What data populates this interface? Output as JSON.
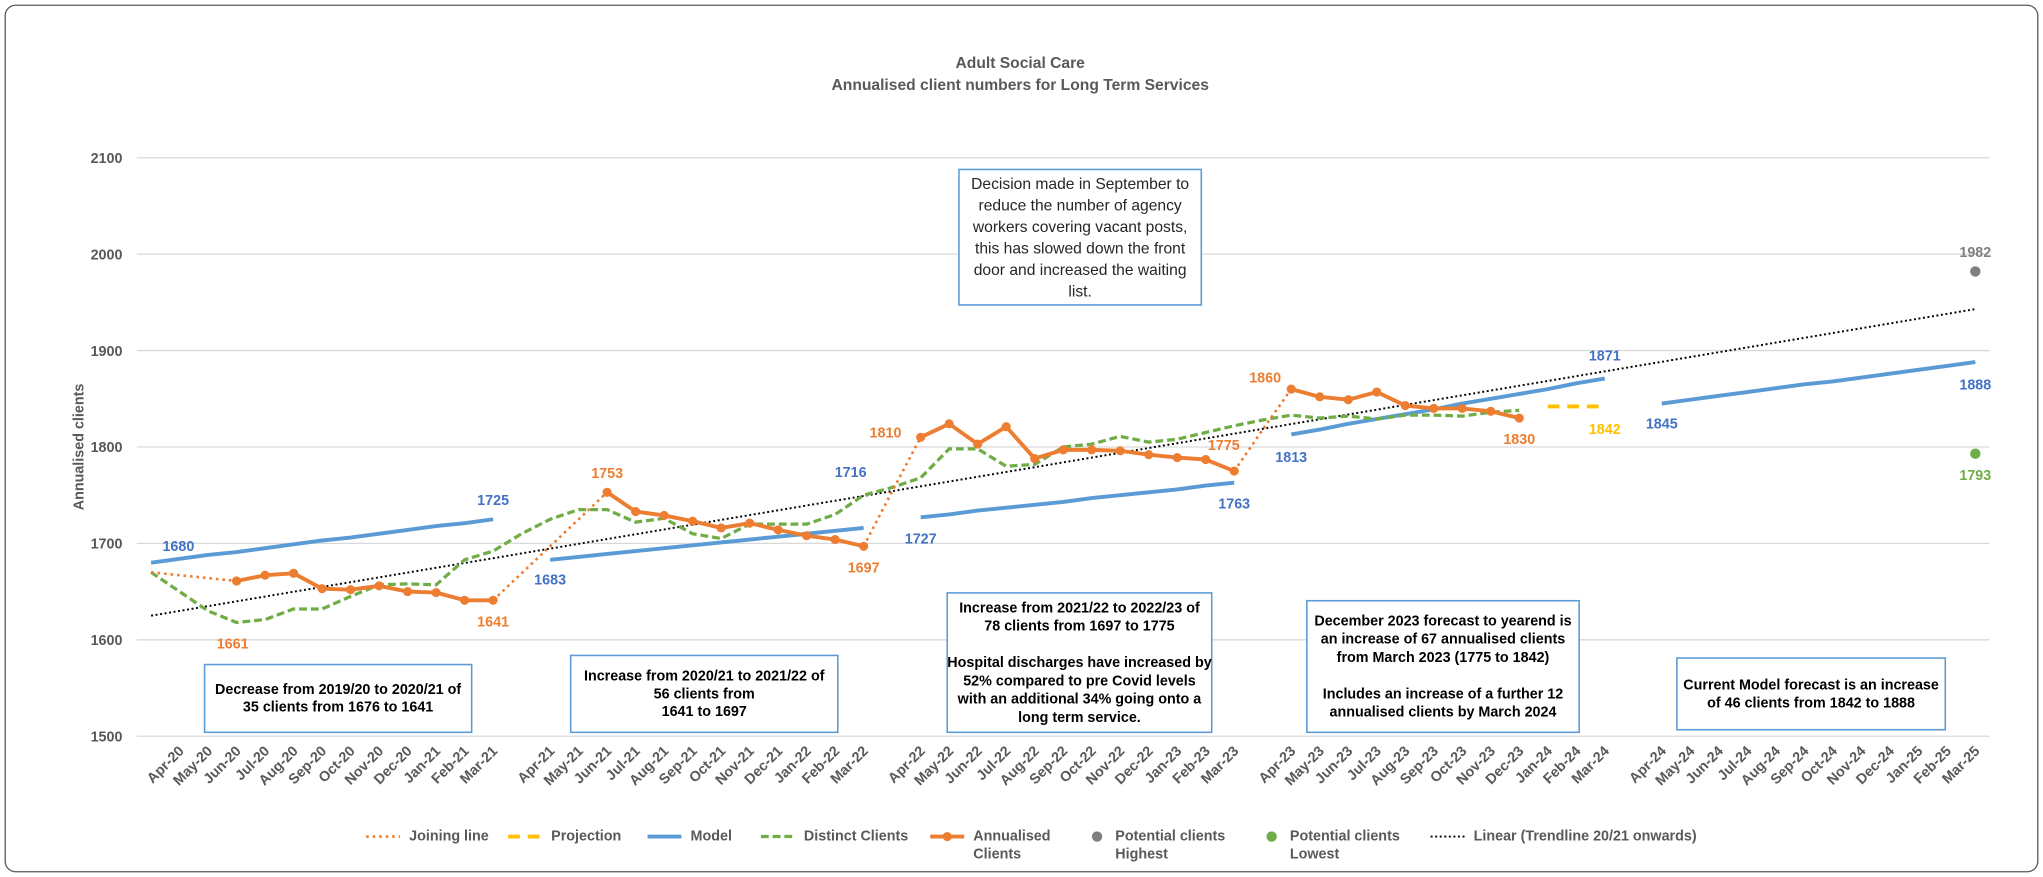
{
  "chart_data": {
    "type": "line",
    "title": "Adult Social Care",
    "subtitle": "Annualised client numbers for Long Term Services",
    "ylabel": "Annualised clients",
    "ylim": [
      1500,
      2100
    ],
    "yticks": [
      1500,
      1600,
      1700,
      1800,
      1900,
      2000,
      2100
    ],
    "grid": true,
    "categories": [
      null,
      "Apr-20",
      "May-20",
      "Jun-20",
      "Jul-20",
      "Aug-20",
      "Sep-20",
      "Oct-20",
      "Nov-20",
      "Dec-20",
      "Jan-21",
      "Feb-21",
      "Mar-21",
      null,
      "Apr-21",
      "May-21",
      "Jun-21",
      "Jul-21",
      "Aug-21",
      "Sep-21",
      "Oct-21",
      "Nov-21",
      "Dec-21",
      "Jan-22",
      "Feb-22",
      "Mar-22",
      null,
      "Apr-22",
      "May-22",
      "Jun-22",
      "Jul-22",
      "Aug-22",
      "Sep-22",
      "Oct-22",
      "Nov-22",
      "Dec-22",
      "Jan-23",
      "Feb-23",
      "Mar-23",
      null,
      "Apr-23",
      "May-23",
      "Jun-23",
      "Jul-23",
      "Aug-23",
      "Sep-23",
      "Oct-23",
      "Nov-23",
      "Dec-23",
      "Jan-24",
      "Feb-24",
      "Mar-24",
      null,
      "Apr-24",
      "May-24",
      "Jun-24",
      "Jul-24",
      "Aug-24",
      "Sep-24",
      "Oct-24",
      "Nov-24",
      "Dec-24",
      "Jan-25",
      "Feb-25",
      "Mar-25"
    ],
    "series": [
      {
        "name": "Joining line",
        "color": "#ed7d31",
        "values": [
          1670,
          1667,
          1664,
          1661,
          null,
          null,
          null,
          null,
          null,
          null,
          null,
          null,
          1641,
          1669,
          1697,
          1725,
          1753,
          null,
          null,
          null,
          null,
          null,
          null,
          null,
          null,
          1697,
          1754,
          1810,
          null,
          null,
          null,
          null,
          null,
          null,
          null,
          null,
          null,
          null,
          1775,
          1818,
          1860,
          null,
          null,
          null,
          null,
          null,
          null,
          null,
          null,
          null,
          null,
          null,
          null,
          null,
          null,
          null,
          null,
          null,
          null,
          null,
          null,
          null,
          null,
          null,
          null
        ]
      },
      {
        "name": "Projection",
        "color": "#ffc000",
        "values": [
          null,
          null,
          null,
          null,
          null,
          null,
          null,
          null,
          null,
          null,
          null,
          null,
          null,
          null,
          null,
          null,
          null,
          null,
          null,
          null,
          null,
          null,
          null,
          null,
          null,
          null,
          null,
          null,
          null,
          null,
          null,
          null,
          null,
          null,
          null,
          null,
          null,
          null,
          null,
          null,
          null,
          null,
          null,
          null,
          null,
          null,
          null,
          null,
          null,
          1842,
          1842,
          1842,
          null,
          null,
          null,
          null,
          null,
          null,
          null,
          null,
          null,
          null,
          null,
          null,
          null
        ],
        "value_labels": {
          "51": "1842"
        }
      },
      {
        "name": "Model",
        "color": "#5b9bd5",
        "label_color": "#4472c4",
        "values": [
          1680,
          1684,
          1688,
          1691,
          1695,
          1699,
          1703,
          1706,
          1710,
          1714,
          1718,
          1721,
          1725,
          null,
          1683,
          1686,
          1689,
          1692,
          1695,
          1698,
          1701,
          1704,
          1707,
          1710,
          1713,
          1716,
          null,
          1727,
          1730,
          1734,
          1737,
          1740,
          1743,
          1747,
          1750,
          1753,
          1756,
          1760,
          1763,
          null,
          1813,
          1818,
          1824,
          1829,
          1834,
          1839,
          1845,
          1850,
          1855,
          1860,
          1866,
          1871,
          null,
          1845,
          1849,
          1853,
          1857,
          1861,
          1865,
          1868,
          1872,
          1876,
          1880,
          1884,
          1888
        ],
        "value_labels": {
          "0": "1680",
          "12": "1725",
          "14": "1683",
          "25": "1716",
          "27": "1727",
          "38": "1763",
          "40": "1813",
          "51": "1871",
          "53": "1845",
          "64": "1888"
        }
      },
      {
        "name": "Distinct Clients",
        "color": "#70ad47",
        "values": [
          1670,
          1650,
          1630,
          1618,
          1621,
          1632,
          1632,
          1645,
          1657,
          1658,
          1657,
          1683,
          1692,
          1710,
          1725,
          1735,
          1735,
          1722,
          1726,
          1710,
          1705,
          1720,
          1720,
          1720,
          1730,
          1750,
          1758,
          1768,
          1798,
          1798,
          1780,
          1782,
          1800,
          1803,
          1811,
          1805,
          1808,
          1815,
          1822,
          1828,
          1833,
          1830,
          1832,
          1829,
          1833,
          1833,
          1832,
          1836,
          1838,
          null,
          null,
          null,
          null,
          null,
          null,
          null,
          null,
          null,
          null,
          null,
          null,
          null,
          null,
          null,
          null
        ]
      },
      {
        "name": "Annualised Clients",
        "color": "#ed7d31",
        "values": [
          null,
          null,
          null,
          1661,
          1667,
          1669,
          1653,
          1652,
          1656,
          1650,
          1649,
          1641,
          1641,
          null,
          null,
          null,
          1753,
          1733,
          1729,
          1723,
          1716,
          1721,
          1714,
          1708,
          1704,
          1697,
          null,
          1810,
          1824,
          1803,
          1821,
          1788,
          1797,
          1797,
          1796,
          1792,
          1789,
          1787,
          1775,
          null,
          1860,
          1852,
          1849,
          1857,
          1843,
          1840,
          1840,
          1837,
          1830,
          null,
          null,
          null,
          null,
          null,
          null,
          null,
          null,
          null,
          null,
          null,
          null,
          null,
          null,
          null,
          null
        ],
        "value_labels": {
          "3": "1661",
          "12": "1641",
          "16": "1753",
          "25": "1697",
          "27": "1810",
          "38": "1775",
          "40": "1860",
          "48": "1830"
        }
      },
      {
        "name": "Potential clients Highest",
        "color": "#7f7f7f",
        "values": [
          null,
          null,
          null,
          null,
          null,
          null,
          null,
          null,
          null,
          null,
          null,
          null,
          null,
          null,
          null,
          null,
          null,
          null,
          null,
          null,
          null,
          null,
          null,
          null,
          null,
          null,
          null,
          null,
          null,
          null,
          null,
          null,
          null,
          null,
          null,
          null,
          null,
          null,
          null,
          null,
          null,
          null,
          null,
          null,
          null,
          null,
          null,
          null,
          null,
          null,
          null,
          null,
          null,
          null,
          null,
          null,
          null,
          null,
          null,
          null,
          null,
          null,
          null,
          null,
          1982
        ],
        "value_labels": {
          "64": "1982"
        }
      },
      {
        "name": "Potential clients Lowest",
        "color": "#70ad47",
        "values": [
          null,
          null,
          null,
          null,
          null,
          null,
          null,
          null,
          null,
          null,
          null,
          null,
          null,
          null,
          null,
          null,
          null,
          null,
          null,
          null,
          null,
          null,
          null,
          null,
          null,
          null,
          null,
          null,
          null,
          null,
          null,
          null,
          null,
          null,
          null,
          null,
          null,
          null,
          null,
          null,
          null,
          null,
          null,
          null,
          null,
          null,
          null,
          null,
          null,
          null,
          null,
          null,
          null,
          null,
          null,
          null,
          null,
          null,
          null,
          null,
          null,
          null,
          null,
          null,
          1793
        ],
        "value_labels": {
          "64": "1793"
        }
      }
    ],
    "trendline": {
      "name": "Linear (Trendline 20/21 onwards)",
      "color": "#000000",
      "values": [
        1625,
        1943
      ]
    },
    "annotations": [
      {
        "paragraphs": [
          [
            "Decrease from 2019/20 to 2020/21 of",
            "35 clients from 1676 to 1641"
          ]
        ]
      },
      {
        "paragraphs": [
          [
            "Increase from 2020/21 to 2021/22 of",
            "56 clients from",
            "1641 to 1697"
          ]
        ]
      },
      {
        "paragraphs": [
          [
            "Increase from 2021/22 to 2022/23 of",
            "78 clients from 1697 to 1775"
          ],
          [
            "Hospital discharges have increased by",
            "52% compared to pre Covid levels",
            "with an additional 34% going onto a",
            "long term service."
          ]
        ]
      },
      {
        "paragraphs": [
          [
            "December 2023 forecast to yearend is",
            "an increase of 67 annualised clients",
            "from March 2023 (1775 to 1842)"
          ],
          [
            "Includes an increase of a further 12",
            "annualised clients by March 2024"
          ]
        ]
      },
      {
        "paragraphs": [
          [
            "Current Model forecast is an increase",
            "of 46 clients from 1842 to 1888"
          ]
        ]
      },
      {
        "paragraphs": [
          [
            "Decision made in September to",
            "reduce the number of agency",
            "workers covering vacant posts,",
            "this has slowed down the front",
            "door and increased the waiting",
            "list."
          ]
        ]
      }
    ]
  }
}
